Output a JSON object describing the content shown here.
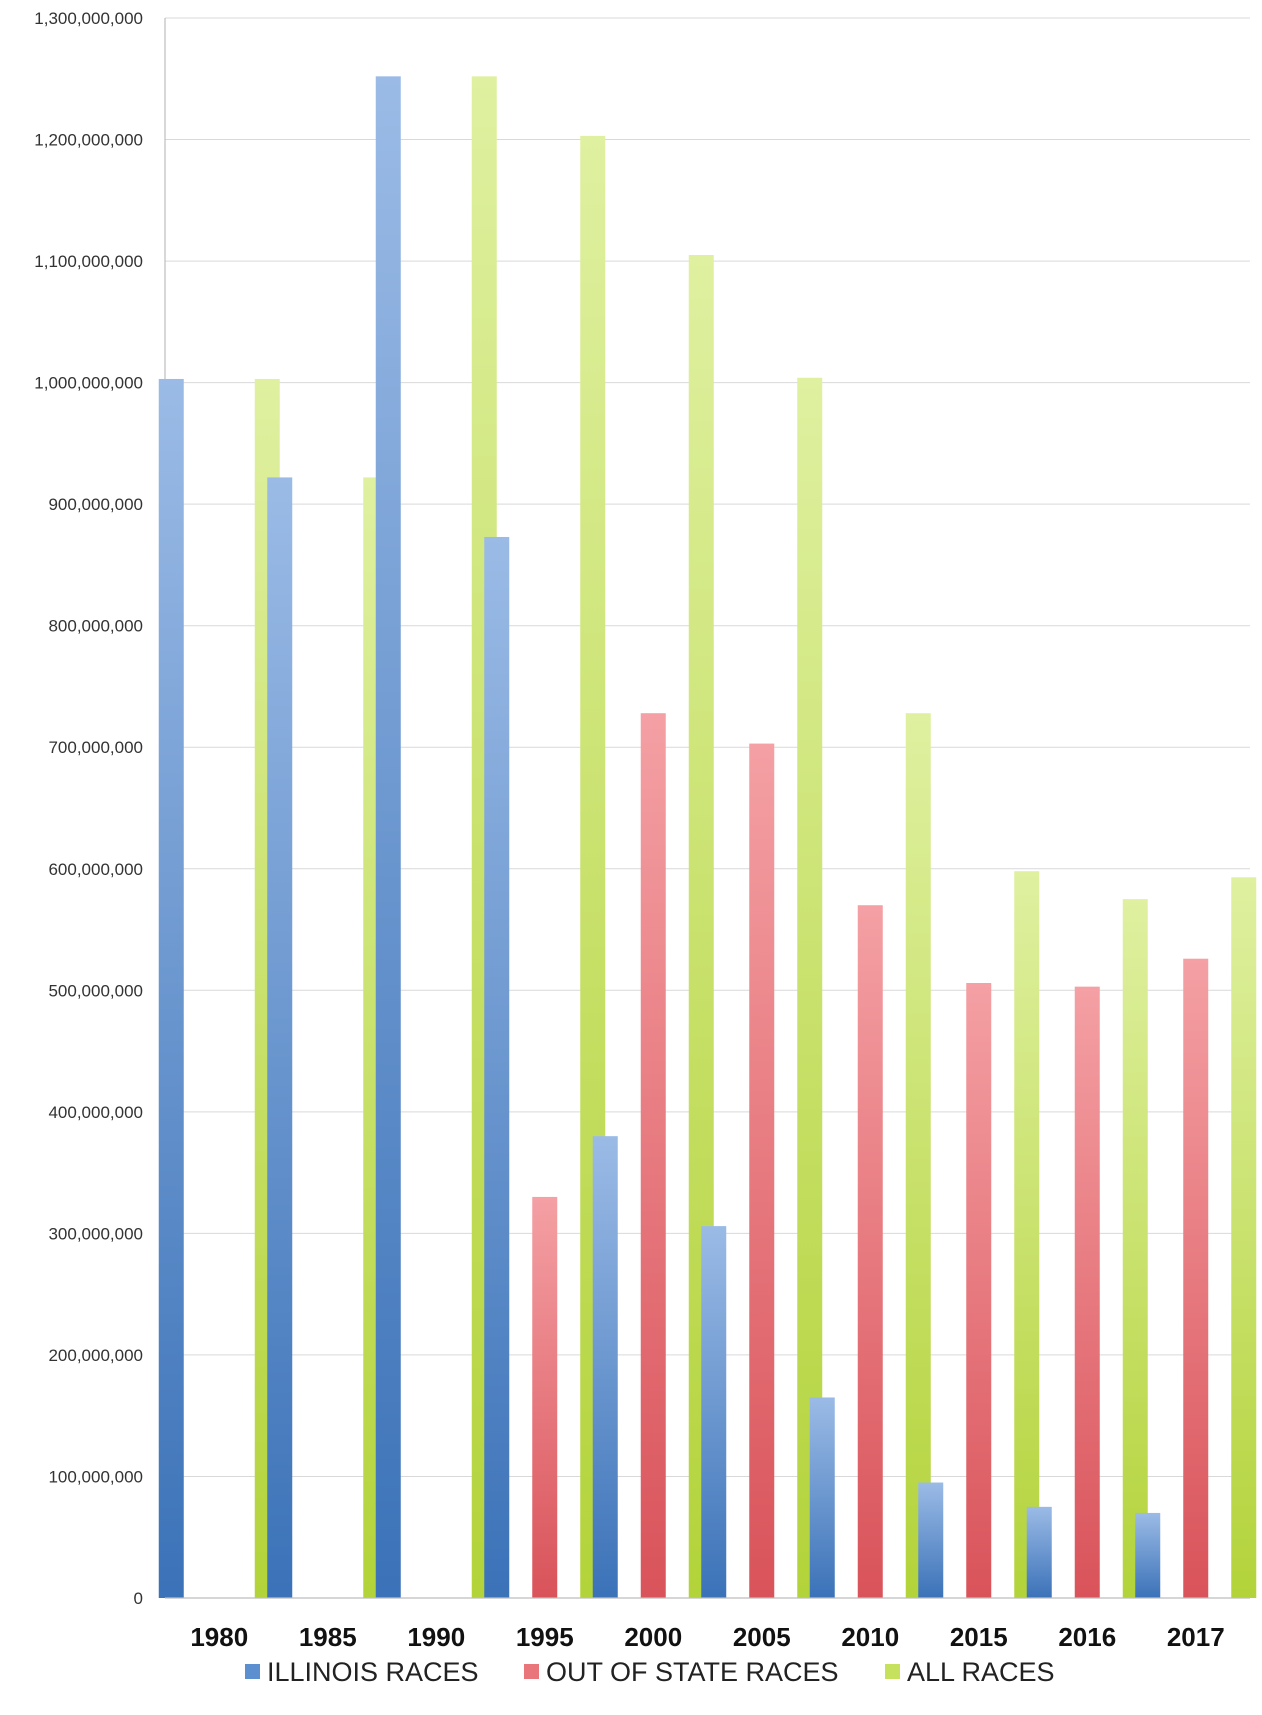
{
  "chart_data": {
    "type": "bar",
    "title": "",
    "xlabel": "",
    "ylabel": "",
    "categories": [
      "1980",
      "1985",
      "1990",
      "1995",
      "2000",
      "2005",
      "2010",
      "2015",
      "2016",
      "2017"
    ],
    "series": [
      {
        "name": "ILLINOIS RACES",
        "color": "#5b8fd0",
        "values": [
          1003000000,
          922000000,
          1252000000,
          873000000,
          380000000,
          306000000,
          165000000,
          95000000,
          75000000,
          70000000
        ]
      },
      {
        "name": "OUT OF STATE RACES",
        "color": "#e8767b",
        "values": [
          0,
          0,
          0,
          330000000,
          728000000,
          703000000,
          570000000,
          506000000,
          503000000,
          526000000
        ]
      },
      {
        "name": "ALL RACES",
        "color": "#c6e15d",
        "values": [
          1003000000,
          922000000,
          1252000000,
          1203000000,
          1105000000,
          1004000000,
          728000000,
          598000000,
          575000000,
          593000000
        ]
      }
    ],
    "ylim": [
      0,
      1300000000
    ],
    "yticks": [
      0,
      100000000,
      200000000,
      300000000,
      400000000,
      500000000,
      600000000,
      700000000,
      800000000,
      900000000,
      1000000000,
      1100000000,
      1200000000,
      1300000000
    ],
    "ytick_labels": [
      "0",
      "100,000,000",
      "200,000,000",
      "300,000,000",
      "400,000,000",
      "500,000,000",
      "600,000,000",
      "700,000,000",
      "800,000,000",
      "900,000,000",
      "1,000,000,000",
      "1,100,000,000",
      "1,200,000,000",
      "1,300,000,000"
    ],
    "grid": true,
    "legend": "bottom"
  }
}
